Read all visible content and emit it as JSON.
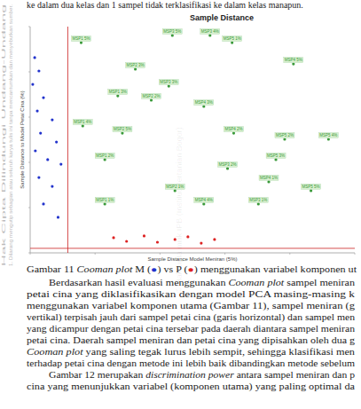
{
  "top_text": "ke dalam dua kelas dan 1 sampel tidak terklasifikasi ke dalam kelas manapun.",
  "watermark": [
    "Hak Cipta Dilindungi Undang-Undang",
    "1. Dilarang mengutip sebagian atau seluruh karya tulis ini tanpa mencantumkan dan menyebutkan sumber."
  ],
  "center_watermark": "© Hak cipta milik IPB (Institut Pertanian Bogor)",
  "chart_data": {
    "type": "scatter",
    "title": "Sample Distance",
    "x_label": "Sample Distance Model Meniran (5%)",
    "y_label": "Sample Distance to Model Petai Cina (%)",
    "xlim": [
      0,
      10
    ],
    "ylim": [
      0,
      10
    ],
    "xticks": [
      0,
      2,
      4,
      6,
      8,
      10
    ],
    "yticks": [
      0,
      2,
      4,
      6,
      8,
      10
    ],
    "tick_labels": false,
    "grid": false,
    "critical_x": 1.16,
    "critical_y": 0.2,
    "series": [
      {
        "color": "#3a9a3a",
        "marker": "circle",
        "x": [
          1.57,
          4.38,
          5.54,
          6.22,
          3.24,
          8.11,
          4.27,
          2.7,
          3.73,
          5.35,
          1.62,
          2.84,
          6.27,
          7.84,
          9.19,
          2.3,
          6.08,
          7.57,
          4.46,
          2.3,
          5.35,
          7.35,
          7.03,
          8.65
        ],
        "values": [
          9.29,
          9.61,
          9.61,
          9.29,
          8.12,
          8.35,
          7.37,
          6.94,
          6.75,
          6.47,
          5.61,
          5.29,
          5.29,
          5.02,
          5.02,
          4.12,
          3.73,
          4.12,
          2.75,
          2.16,
          2.16,
          3.14,
          2.16,
          2.75
        ],
        "labels": [
          "MSP1 5%",
          "MSP3 5%",
          "MSP3 4%",
          "MSP5 1%",
          "MSP2 3%",
          "MSP4 5%",
          "MSP3 3%",
          "MSP1 3%",
          "MSP2 2%",
          "MSP4 3%",
          "MSP1 4%",
          "MSP2 5%",
          "MSP4 2%",
          "MSP5 2%",
          "MSP5 4%",
          "MSP1 2%",
          "MSP3 2%",
          "MSP5 3%",
          "MSP2 1%",
          "MSP1 1%",
          "MSP4 4%",
          "MSP4 1%",
          "MSP3 1%",
          "MSP5 5%"
        ]
      },
      {
        "color": "#2233cc",
        "marker": "circle",
        "x": [
          0.14,
          0.27,
          0.08,
          0.41,
          0.22,
          0.68,
          0.32,
          0.81,
          0.16,
          0.54,
          0.95,
          0.27,
          0.68,
          0.41,
          0.86
        ],
        "values": [
          8.63,
          8.04,
          7.45,
          6.86,
          6.27,
          5.88,
          5.29,
          4.9,
          4.51,
          4.12,
          3.92,
          3.33,
          2.94,
          2.16,
          1.57
        ]
      },
      {
        "color": "#dd2222",
        "marker": "circle",
        "x": [
          2.57,
          2.97,
          3.51,
          3.92,
          4.46,
          4.86,
          5.27,
          5.68
        ],
        "values": [
          0.67,
          0.51,
          0.75,
          0.47,
          0.59,
          0.71,
          0.43,
          0.59
        ]
      }
    ]
  },
  "caption": {
    "number": "Gambar 11",
    "italic": "Cooman plot",
    "parts": [
      "M (",
      ") vs P (",
      ") menggunakan variabel komponen ut"
    ],
    "dot_colors": [
      "#2233cc",
      "#dd2222"
    ],
    "dot": "●"
  },
  "paragraphs": [
    [
      {
        "t": "Berdasarkan hasil evaluasi menggunakan "
      },
      {
        "t": "Cooman plot",
        "i": true
      },
      {
        "t": " sampel meniran"
      }
    ],
    [
      {
        "t": "petai cina yang diklasifikasikan dengan model PCA masing-masing k"
      }
    ],
    [
      {
        "t": "menggunakan variabel komponen utama (Gambar 11), sampel meniran (g"
      }
    ],
    [
      {
        "t": "vertikal) terpisah jauh dari sampel petai cina (garis horizontal) dan sampel men"
      }
    ],
    [
      {
        "t": "yang dicampur dengan petai cina tersebar pada daerah diantara sampel meniran"
      }
    ],
    [
      {
        "t": "petai cina. Daerah sampel meniran dan petai cina yang dipisahkan oleh dua g"
      }
    ],
    [
      {
        "t": "Cooman plot",
        "i": true
      },
      {
        "t": " yang saling tegak lurus lebih sempit, sehingga klasifikasi men"
      }
    ],
    [
      {
        "t": "terhadap petai cina dengan metode ini lebih baik dibandingkan metode sebelum"
      }
    ],
    [
      {
        "t": "Gambar 12 merupakan "
      },
      {
        "t": "discrimination power",
        "i": true
      },
      {
        "t": " antara sampel meniran dan p"
      }
    ],
    [
      {
        "t": "cina yang menunjukkan variabel (komponen utama) yang paling optimal da"
      }
    ]
  ]
}
